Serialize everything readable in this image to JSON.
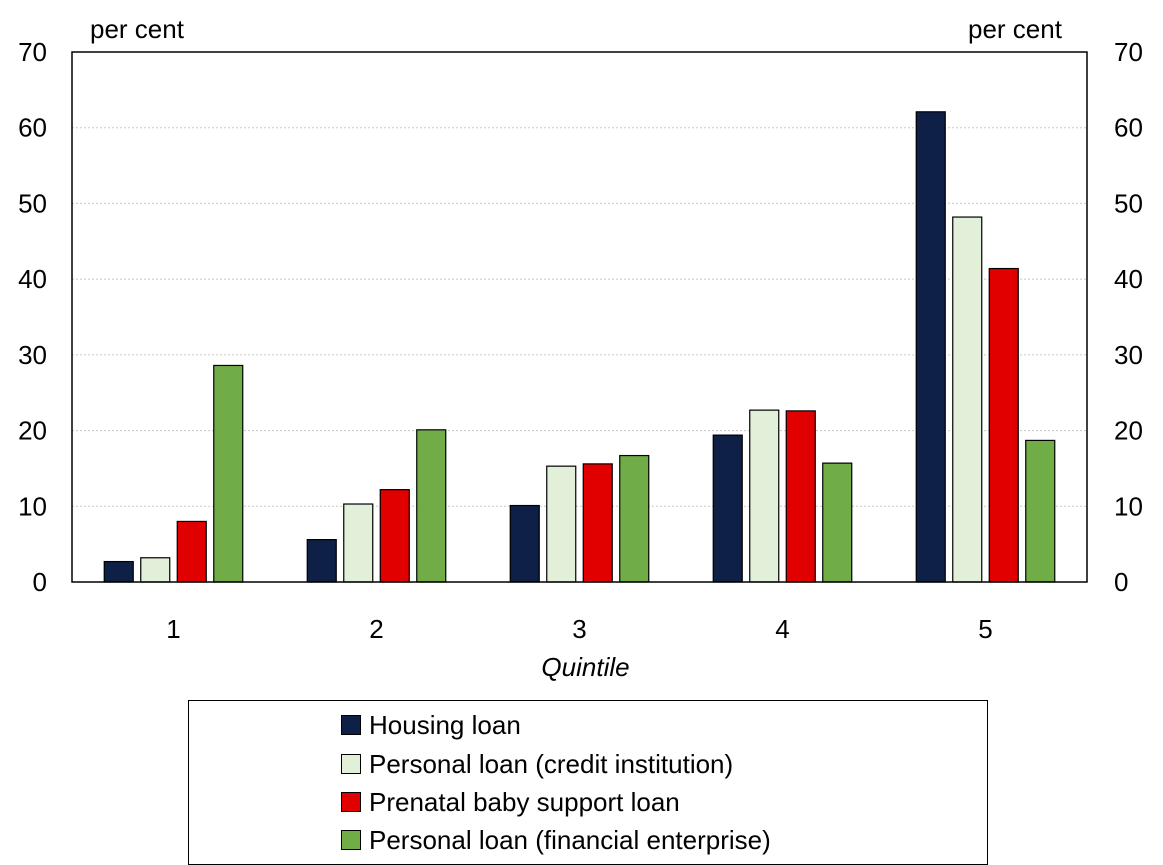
{
  "chart_data": {
    "type": "bar",
    "categories": [
      "1",
      "2",
      "3",
      "4",
      "5"
    ],
    "series": [
      {
        "name": "Housing loan",
        "color": "#0e2045",
        "values": [
          2.7,
          5.6,
          10.1,
          19.4,
          62.1
        ]
      },
      {
        "name": "Personal loan (credit institution)",
        "color": "#e2f0d9",
        "values": [
          3.2,
          10.3,
          15.3,
          22.7,
          48.2
        ]
      },
      {
        "name": "Prenatal baby support loan",
        "color": "#e00000",
        "values": [
          8.0,
          12.2,
          15.6,
          22.6,
          41.4
        ]
      },
      {
        "name": "Personal loan (financial enterprise)",
        "color": "#70ad47",
        "values": [
          28.6,
          20.1,
          16.7,
          15.7,
          18.7
        ]
      }
    ],
    "title": "",
    "xlabel": "Quintile",
    "ylabel_left": "per cent",
    "ylabel_right": "per cent",
    "ylim": [
      0,
      70
    ],
    "yticks": [
      0,
      10,
      20,
      30,
      40,
      50,
      60,
      70
    ],
    "grid": true,
    "legend_position": "bottom"
  }
}
